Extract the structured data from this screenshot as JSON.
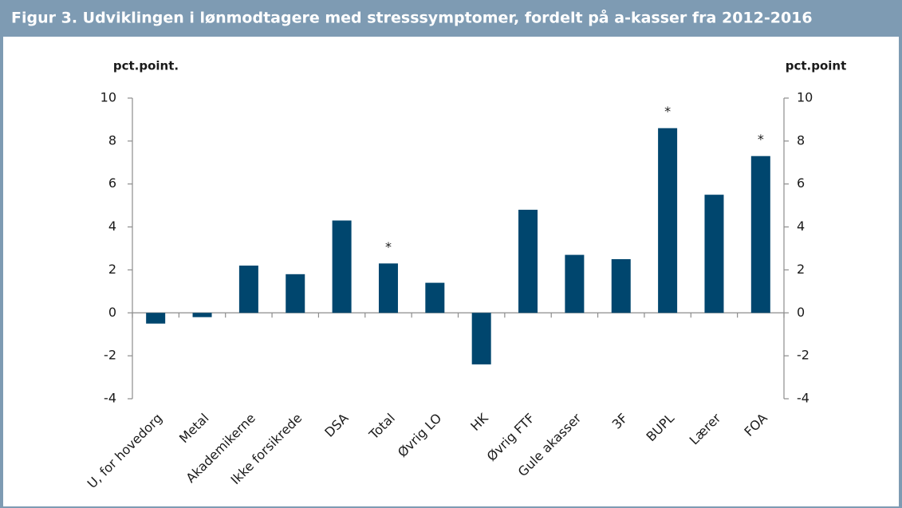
{
  "chart_data": {
    "type": "bar",
    "title": "Figur 3.  Udviklingen i lønmodtagere med stresssymptomer, fordelt på a-kasser fra 2012-2016",
    "ylabel": "pct.point.",
    "y2label": "pct.point",
    "categories": [
      "U, for hovedorg",
      "Metal",
      "Akademikerne",
      "Ikke forsikrede",
      "DSA",
      "Total",
      "Øvrig LO",
      "HK",
      "Øvrig FTF",
      "Gule akasser",
      "3F",
      "BUPL",
      "Lærer",
      "FOA"
    ],
    "values": [
      -0.5,
      -0.2,
      2.2,
      1.8,
      4.3,
      2.3,
      1.4,
      -2.4,
      4.8,
      2.7,
      2.5,
      8.6,
      5.5,
      7.3
    ],
    "color": "#00466e",
    "ylim": [
      -4,
      10
    ],
    "yticks": [
      -4,
      -2,
      0,
      2,
      4,
      6,
      8,
      10
    ],
    "y2lim": [
      -4,
      10
    ],
    "y2ticks": [
      -4,
      -2,
      0,
      2,
      4,
      6,
      8,
      10
    ],
    "grid": false,
    "annotations": [
      {
        "text": "*",
        "category": "Total"
      },
      {
        "text": "*",
        "category": "BUPL"
      },
      {
        "text": "*",
        "category": "FOA"
      }
    ]
  }
}
